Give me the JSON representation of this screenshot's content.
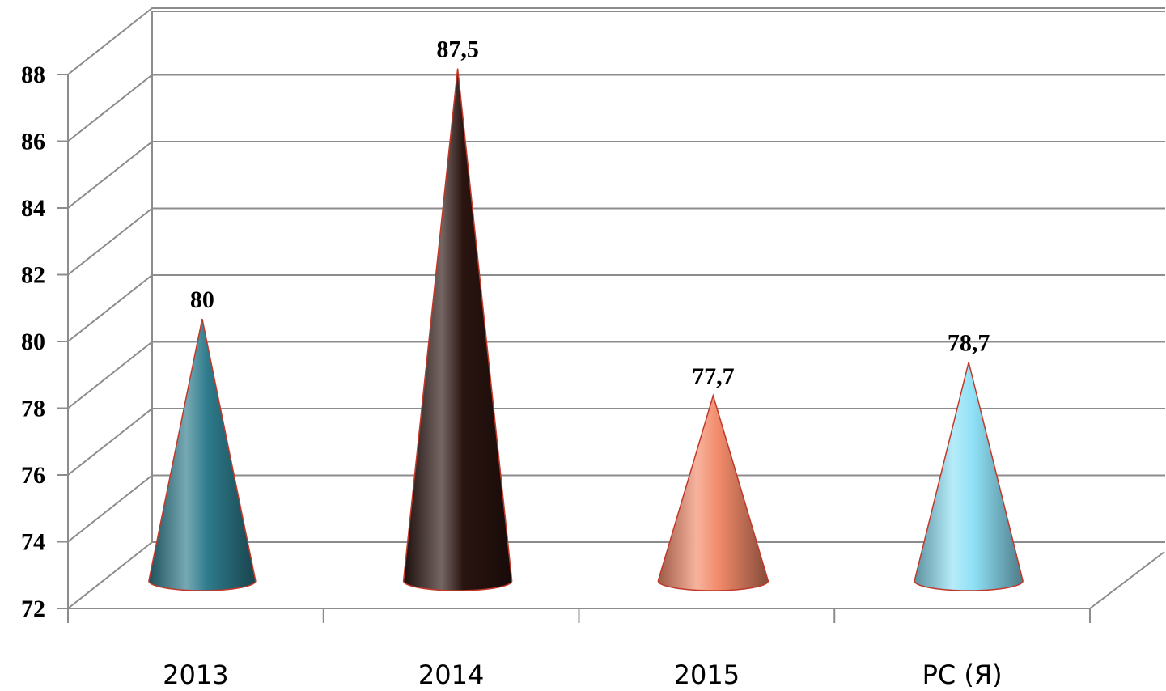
{
  "chart_data": {
    "type": "bar",
    "style": "3d-cone",
    "categories": [
      "2013",
      "2014",
      "2015",
      "РС (Я)"
    ],
    "values": [
      80,
      87.5,
      77.7,
      78.7
    ],
    "data_labels": [
      "80",
      "87,5",
      "77,7",
      "78,7"
    ],
    "ylim": [
      72,
      88
    ],
    "yticks": [
      "72",
      "74",
      "76",
      "78",
      "80",
      "82",
      "84",
      "86",
      "88"
    ],
    "grid": true,
    "legend": "none",
    "colors": {
      "2013": "#2e7b8c",
      "2014": "#2a1410",
      "2015": "#f28a6a",
      "РС (Я)": "#8ee0f5"
    },
    "title": "",
    "xlabel": "",
    "ylabel": ""
  }
}
